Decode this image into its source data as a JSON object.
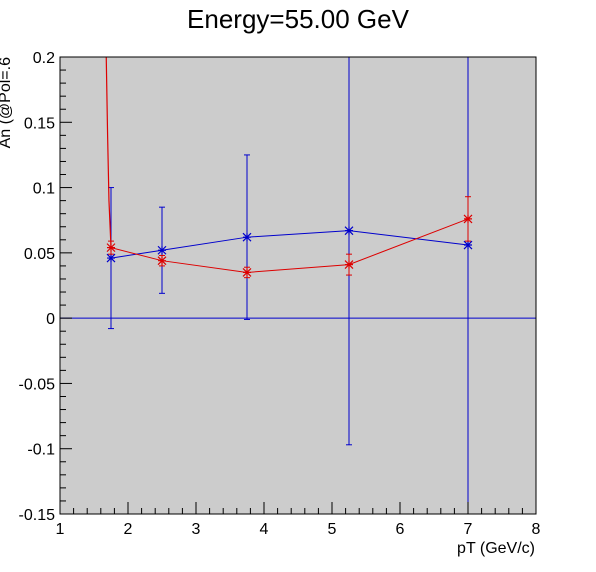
{
  "chart_data": {
    "type": "scatter",
    "title": "Energy=55.00 GeV",
    "xlabel": "pT (GeV/c)",
    "ylabel": "An (@Pol=.6",
    "xlim": [
      1,
      8
    ],
    "ylim": [
      -0.15,
      0.2
    ],
    "xticks": [
      1,
      2,
      3,
      4,
      5,
      6,
      7,
      8
    ],
    "yticks": [
      -0.15,
      -0.1,
      -0.05,
      0,
      0.05,
      0.1,
      0.15,
      0.2
    ],
    "ytick_labels": [
      "-0.15",
      "-0.1",
      "-0.05",
      "0",
      "0.05",
      "0.1",
      "0.15",
      "0.2"
    ],
    "grid": false,
    "background": "#cccccc",
    "reference_line": {
      "y": 0,
      "color": "#0000cc"
    },
    "series": [
      {
        "color": "#0000cc",
        "marker": "asterisk",
        "points": [
          {
            "x": 1.75,
            "y": 0.046,
            "err": 0.054
          },
          {
            "x": 2.5,
            "y": 0.052,
            "err": 0.033
          },
          {
            "x": 3.75,
            "y": 0.062,
            "err": 0.063
          },
          {
            "x": 5.25,
            "y": 0.067,
            "err": 0.164
          },
          {
            "x": 7.0,
            "y": 0.056,
            "err": 0.22
          }
        ]
      },
      {
        "color": "#dd0000",
        "marker": "asterisk",
        "points": [
          {
            "x": 1.75,
            "y": 0.054,
            "err": 0.005
          },
          {
            "x": 2.5,
            "y": 0.044,
            "err": 0.004
          },
          {
            "x": 3.75,
            "y": 0.035,
            "err": 0.004
          },
          {
            "x": 5.25,
            "y": 0.041,
            "err": 0.008
          },
          {
            "x": 7.0,
            "y": 0.076,
            "err": 0.017
          }
        ],
        "steep_segment": [
          {
            "x": 1.68,
            "y": 0.2
          },
          {
            "x": 1.7,
            "y": 0.14
          },
          {
            "x": 1.72,
            "y": 0.09
          },
          {
            "x": 1.75,
            "y": 0.054
          }
        ]
      }
    ]
  }
}
